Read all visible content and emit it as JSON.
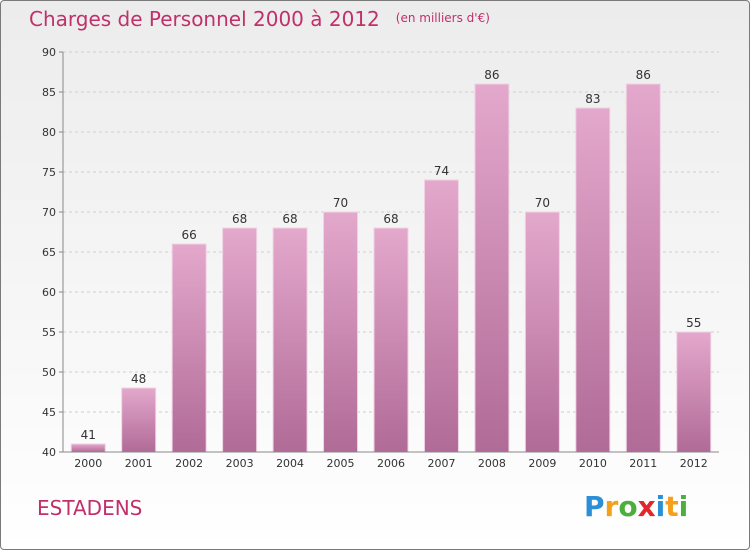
{
  "title": "Charges de Personnel 2000 à 2012",
  "unit": "(en milliers d'€)",
  "city": "ESTADENS",
  "logo": {
    "text": "Proxiti",
    "letters": [
      {
        "char": "P",
        "color": "#2a8fd6"
      },
      {
        "char": "r",
        "color": "#f5a01a"
      },
      {
        "char": "o",
        "color": "#4cae3c"
      },
      {
        "char": "x",
        "color": "#e2262b"
      },
      {
        "char": "i",
        "color": "#2a8fd6"
      },
      {
        "char": "t",
        "color": "#f5a01a"
      },
      {
        "char": "i",
        "color": "#4cae3c"
      }
    ]
  },
  "colors": {
    "accent": "#c0306a",
    "bar_top": "#e4a8cc",
    "bar_bottom": "#b06b97",
    "grid": "#cfcfcf"
  },
  "chart_data": {
    "type": "bar",
    "categories": [
      "2000",
      "2001",
      "2002",
      "2003",
      "2004",
      "2005",
      "2006",
      "2007",
      "2008",
      "2009",
      "2010",
      "2011",
      "2012"
    ],
    "values": [
      41,
      48,
      66,
      68,
      68,
      70,
      68,
      74,
      86,
      70,
      83,
      86,
      55
    ],
    "ylim": [
      40,
      90
    ],
    "yticks": [
      40,
      45,
      50,
      55,
      60,
      65,
      70,
      75,
      80,
      85,
      90
    ],
    "grid": true,
    "title": "Charges de Personnel 2000 à 2012",
    "xlabel": "",
    "ylabel": ""
  }
}
